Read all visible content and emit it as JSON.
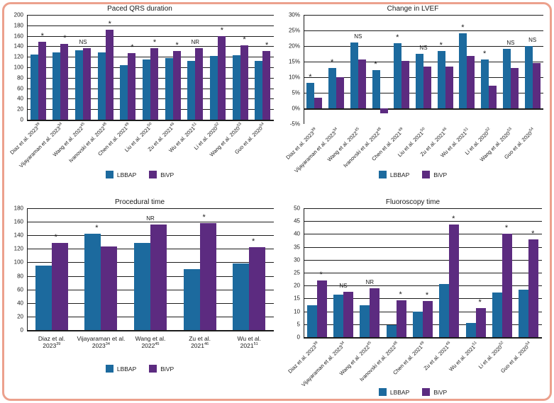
{
  "figure": {
    "border_color": "#eca18d",
    "background": "#ffffff"
  },
  "colors": {
    "lbbap": "#1c6a9e",
    "bivp": "#5c2b80",
    "gridline": "#1c1c1c"
  },
  "legend": {
    "items": [
      "LBBAP",
      "BiVP"
    ]
  },
  "chart_data": [
    {
      "type": "bar",
      "title": "Paced QRS duration",
      "ylim": [
        0,
        200
      ],
      "ystep": 20,
      "yformat": "number",
      "gridline_min": 0,
      "x_label_style": "rotated",
      "legend_position": "bottom-center",
      "grid": true,
      "categories": [
        {
          "text": "Diaz et al. 2023",
          "sup": "39"
        },
        {
          "text": "Vijayaraman et al. 2023",
          "sup": "34"
        },
        {
          "text": "Wang et al. 2022",
          "sup": "45"
        },
        {
          "text": "Ivanovski et al. 2022",
          "sup": "48"
        },
        {
          "text": "Chen et al. 2021",
          "sup": "49"
        },
        {
          "text": "Liu et al. 2021",
          "sup": "50"
        },
        {
          "text": "Zu et al. 2021",
          "sup": "46"
        },
        {
          "text": "Wu et al. 2021",
          "sup": "51"
        },
        {
          "text": "Li et al. 2020",
          "sup": "52"
        },
        {
          "text": "Wang et al. 2020",
          "sup": "53"
        },
        {
          "text": "Guo et al. 2020",
          "sup": "54"
        }
      ],
      "series": [
        {
          "name": "LBBAP",
          "values": [
            124,
            128,
            132,
            128,
            104,
            115,
            118,
            112,
            121,
            123,
            112
          ]
        },
        {
          "name": "BiVP",
          "values": [
            148,
            144,
            136,
            172,
            127,
            136,
            131,
            136,
            160,
            142,
            131
          ]
        }
      ],
      "annotations": [
        "*",
        "*",
        "NS",
        "*",
        "*",
        "*",
        "*",
        "NR",
        "*",
        "*",
        "*"
      ]
    },
    {
      "type": "bar",
      "title": "Change in LVEF",
      "ylim": [
        -5,
        30
      ],
      "ystep": 5,
      "yformat": "percent",
      "gridline_min": 0,
      "x_label_style": "rotated",
      "legend_position": "bottom-center",
      "grid": true,
      "categories": [
        {
          "text": "Diaz et al. 2023",
          "sup": "39"
        },
        {
          "text": "Vijayaraman et al. 2023",
          "sup": "34"
        },
        {
          "text": "Wang et al. 2022",
          "sup": "45"
        },
        {
          "text": "Ivanovski et al. 2022",
          "sup": "48"
        },
        {
          "text": "Chen et al. 2021",
          "sup": "49"
        },
        {
          "text": "Liu et al. 2021",
          "sup": "50"
        },
        {
          "text": "Zu et al. 2021",
          "sup": "46"
        },
        {
          "text": "Wu et al. 2021",
          "sup": "51"
        },
        {
          "text": "Li et al. 2020",
          "sup": "52"
        },
        {
          "text": "Wang et al. 2020",
          "sup": "53"
        },
        {
          "text": "Guo et al. 2020",
          "sup": "54"
        }
      ],
      "series": [
        {
          "name": "LBBAP",
          "values": [
            8.2,
            13,
            21.2,
            12.2,
            21,
            17.4,
            18.5,
            24,
            15.7,
            19,
            20
          ]
        },
        {
          "name": "BiVP",
          "values": [
            3.3,
            10,
            15.7,
            -1.7,
            15.3,
            13.4,
            13.4,
            16.8,
            7.2,
            13,
            14.5
          ]
        }
      ],
      "annotations": [
        "*",
        "*",
        "NS",
        "*",
        "*",
        "NS",
        "*",
        "*",
        "*",
        "NS",
        "NS"
      ]
    },
    {
      "type": "bar",
      "title": "Procedural time",
      "ylim": [
        0,
        180
      ],
      "ystep": 20,
      "yformat": "number",
      "gridline_min": 0,
      "x_label_style": "horizontal",
      "legend_position": "bottom-center",
      "grid": true,
      "categories": [
        {
          "text": "Diaz et al. 2023",
          "sup": "39"
        },
        {
          "text": "Vijayaraman et al. 2023",
          "sup": "34"
        },
        {
          "text": "Wang et al. 2022",
          "sup": "45"
        },
        {
          "text": "Zu et al. 2021",
          "sup": "46"
        },
        {
          "text": "Wu et al. 2021",
          "sup": "51"
        }
      ],
      "series": [
        {
          "name": "LBBAP",
          "values": [
            95,
            142,
            129,
            90,
            98
          ]
        },
        {
          "name": "BiVP",
          "values": [
            129,
            124,
            156,
            158,
            122
          ]
        }
      ],
      "annotations": [
        "*",
        "*",
        "NR",
        "*",
        "*"
      ]
    },
    {
      "type": "bar",
      "title": "Fluoroscopy time",
      "ylim": [
        0,
        50
      ],
      "ystep": 5,
      "yformat": "number",
      "gridline_min": 0,
      "x_label_style": "rotated",
      "legend_position": "bottom-center",
      "grid": true,
      "categories": [
        {
          "text": "Diaz et al. 2023",
          "sup": "39"
        },
        {
          "text": "Vijayaraman et al. 2023",
          "sup": "34"
        },
        {
          "text": "Wang et al. 2022",
          "sup": "45"
        },
        {
          "text": "Ivanovski et al. 2022",
          "sup": "48"
        },
        {
          "text": "Chen et al. 2021",
          "sup": "49"
        },
        {
          "text": "Zu et al. 2021",
          "sup": "46"
        },
        {
          "text": "Wu et al. 2021",
          "sup": "51"
        },
        {
          "text": "Li et al. 2020",
          "sup": "52"
        },
        {
          "text": "Guo et al. 2020",
          "sup": "54"
        }
      ],
      "series": [
        {
          "name": "LBBAP",
          "values": [
            12.5,
            16.5,
            12.5,
            4.8,
            10,
            20.7,
            5.5,
            17.2,
            18.3
          ]
        },
        {
          "name": "BiVP",
          "values": [
            22,
            17.5,
            19,
            14.3,
            14,
            43.7,
            11.2,
            40,
            38
          ]
        }
      ],
      "annotations": [
        "*",
        "NS",
        "NR",
        "*",
        "*",
        "*",
        "*",
        "*",
        "*"
      ]
    }
  ]
}
